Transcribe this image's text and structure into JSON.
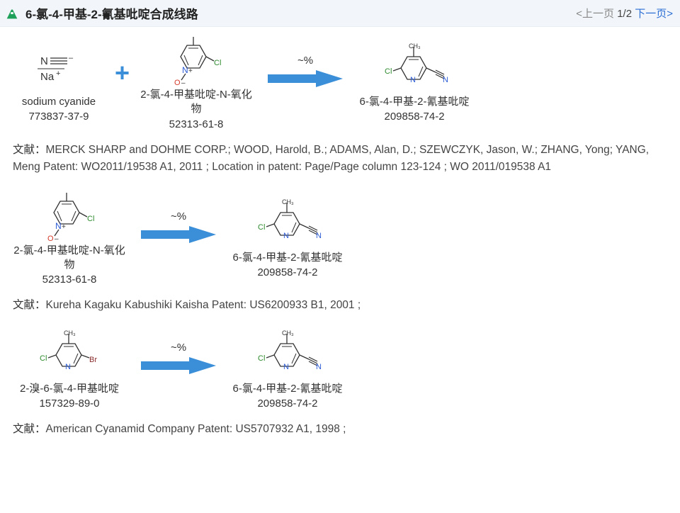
{
  "header": {
    "title": "6-氯-4-甲基-2-氰基吡啶合成线路",
    "pager": {
      "prev": "<上一页",
      "pos": "1/2",
      "next": "下一页>"
    }
  },
  "colors": {
    "accent": "#3b8ed8",
    "arrow_fill": "#3b8ed8",
    "text": "#333333",
    "link": "#2b6ed4",
    "header_bg": "#f2f6fa"
  },
  "labels": {
    "ref_prefix": "文献：",
    "plus": "+"
  },
  "routes": [
    {
      "reagents": [
        {
          "name": "sodium cyanide",
          "cas": "773837-37-9",
          "struct": "nacn"
        },
        {
          "name": "2-氯-4-甲基吡啶-N-氧化物",
          "cas": "52313-61-8",
          "struct": "noxide"
        }
      ],
      "yield": "~%",
      "product": {
        "name": "6-氯-4-甲基-2-氰基吡啶",
        "cas": "209858-74-2",
        "struct": "product"
      },
      "reference": "MERCK SHARP and DOHME CORP.; WOOD, Harold, B.; ADAMS, Alan, D.; SZEWCZYK, Jason, W.; ZHANG, Yong; YANG, Meng Patent: WO2011/19538 A1, 2011 ; Location in patent: Page/Page column 123-124 ; WO 2011/019538 A1"
    },
    {
      "reagents": [
        {
          "name": "2-氯-4-甲基吡啶-N-氧化物",
          "cas": "52313-61-8",
          "struct": "noxide"
        }
      ],
      "yield": "~%",
      "product": {
        "name": "6-氯-4-甲基-2-氰基吡啶",
        "cas": "209858-74-2",
        "struct": "product"
      },
      "reference": "Kureha Kagaku Kabushiki Kaisha Patent: US6200933 B1, 2001 ;"
    },
    {
      "reagents": [
        {
          "name": "2-溴-6-氯-4-甲基吡啶",
          "cas": "157329-89-0",
          "struct": "brcl"
        }
      ],
      "yield": "~%",
      "product": {
        "name": "6-氯-4-甲基-2-氰基吡啶",
        "cas": "209858-74-2",
        "struct": "product"
      },
      "reference": "American Cyanamid Company Patent: US5707932 A1, 1998 ;"
    }
  ]
}
